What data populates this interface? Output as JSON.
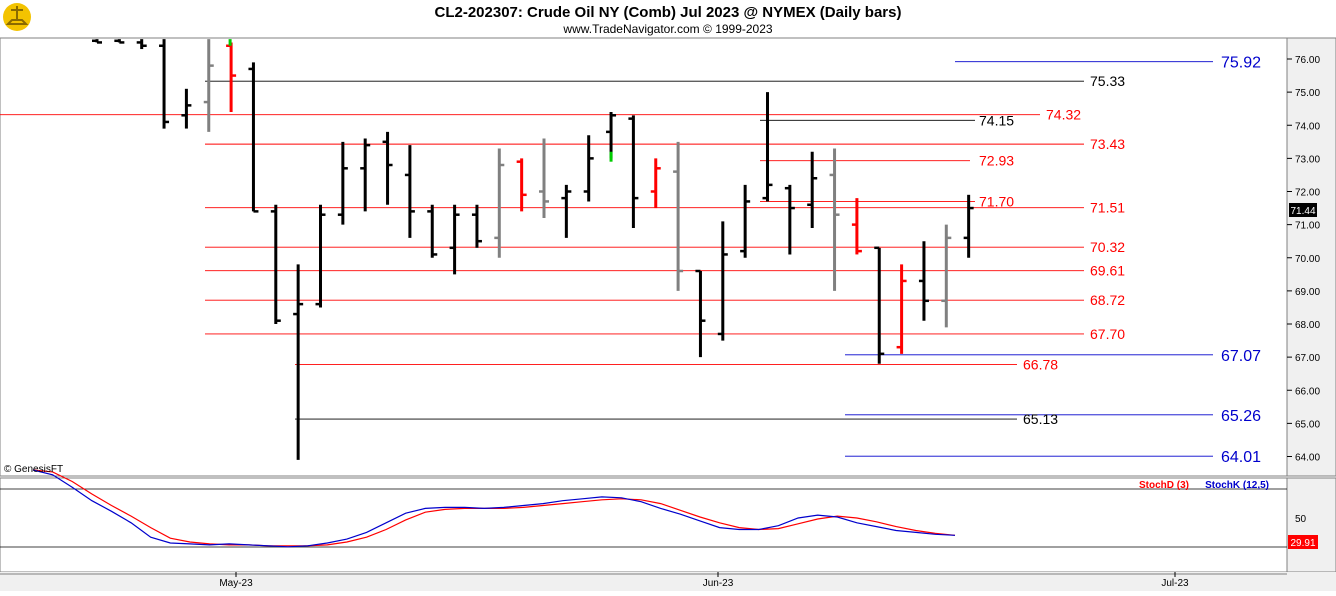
{
  "title": "CL2-202307:  Crude Oil NY (Comb) Jul 2023 @ NYMEX  (Daily bars)",
  "subtitle": "www.TradeNavigator.com © 1999-2023",
  "watermark": "© GenesisFT",
  "logo_icon": "scales-logo-icon",
  "colors": {
    "up": "#000000",
    "down": "#000000",
    "gray": "#808080",
    "red": "#ff0000",
    "green": "#00cc00",
    "blue": "#0000cc",
    "stochD": "#ff0000",
    "stochK": "#0000cc"
  },
  "chart_data": [
    {
      "type": "bar",
      "name": "price",
      "ylim": [
        63.6,
        76.6
      ],
      "yticks": [
        "76.00",
        "75.00",
        "74.00",
        "73.00",
        "72.00",
        "71.00",
        "70.00",
        "69.00",
        "68.00",
        "67.00",
        "66.00",
        "65.00",
        "64.00"
      ],
      "ytick_values": [
        76,
        75,
        74,
        73,
        72,
        71,
        70,
        69,
        68,
        67,
        66,
        65,
        64
      ],
      "last_price": "71.44",
      "xlabels": [
        "May-23",
        "Jun-23",
        "Jul-23"
      ],
      "bars": [
        {
          "h": 76.6,
          "l": 76.5,
          "o": 76.55,
          "c": 76.5,
          "color": "black"
        },
        {
          "h": 76.6,
          "l": 76.5,
          "o": 76.55,
          "c": 76.5,
          "color": "black"
        },
        {
          "h": 76.6,
          "l": 76.3,
          "o": 76.5,
          "c": 76.4,
          "color": "black"
        },
        {
          "h": 76.6,
          "l": 73.9,
          "o": 76.4,
          "c": 74.1,
          "color": "black"
        },
        {
          "h": 75.1,
          "l": 73.9,
          "o": 74.3,
          "c": 74.6,
          "color": "black"
        },
        {
          "h": 76.6,
          "l": 73.8,
          "o": 74.7,
          "c": 75.8,
          "color": "gray"
        },
        {
          "h": 76.5,
          "l": 74.4,
          "o": 76.4,
          "c": 75.5,
          "color": "red"
        },
        {
          "h": 75.9,
          "l": 71.4,
          "o": 75.7,
          "c": 71.4,
          "color": "black"
        },
        {
          "h": 71.6,
          "l": 68.0,
          "o": 71.4,
          "c": 68.1,
          "color": "black"
        },
        {
          "h": 69.8,
          "l": 63.9,
          "o": 68.3,
          "c": 68.6,
          "color": "black"
        },
        {
          "h": 71.6,
          "l": 68.5,
          "o": 68.6,
          "c": 71.3,
          "color": "black"
        },
        {
          "h": 73.5,
          "l": 71.0,
          "o": 71.3,
          "c": 72.7,
          "color": "black"
        },
        {
          "h": 73.6,
          "l": 71.4,
          "o": 72.7,
          "c": 73.4,
          "color": "black"
        },
        {
          "h": 73.8,
          "l": 71.6,
          "o": 73.5,
          "c": 72.8,
          "color": "black"
        },
        {
          "h": 73.4,
          "l": 70.6,
          "o": 72.5,
          "c": 71.4,
          "color": "black"
        },
        {
          "h": 71.6,
          "l": 70.0,
          "o": 71.4,
          "c": 70.1,
          "color": "black"
        },
        {
          "h": 71.6,
          "l": 69.5,
          "o": 70.3,
          "c": 71.3,
          "color": "black"
        },
        {
          "h": 71.6,
          "l": 70.3,
          "o": 71.3,
          "c": 70.5,
          "color": "black"
        },
        {
          "h": 73.3,
          "l": 70.0,
          "o": 70.6,
          "c": 72.8,
          "color": "gray"
        },
        {
          "h": 73.0,
          "l": 71.4,
          "o": 72.9,
          "c": 71.9,
          "color": "red"
        },
        {
          "h": 73.6,
          "l": 71.2,
          "o": 72.0,
          "c": 71.7,
          "color": "gray"
        },
        {
          "h": 72.2,
          "l": 70.6,
          "o": 71.8,
          "c": 72.0,
          "color": "black"
        },
        {
          "h": 73.7,
          "l": 71.7,
          "o": 72.0,
          "c": 73.0,
          "color": "black"
        },
        {
          "h": 74.4,
          "l": 73.0,
          "o": 73.8,
          "c": 74.3,
          "color": "black"
        },
        {
          "h": 74.3,
          "l": 70.9,
          "o": 74.2,
          "c": 71.8,
          "color": "black"
        },
        {
          "h": 73.0,
          "l": 71.5,
          "o": 72.0,
          "c": 72.7,
          "color": "red"
        },
        {
          "h": 73.5,
          "l": 69.0,
          "o": 72.6,
          "c": 69.6,
          "color": "gray"
        },
        {
          "h": 69.6,
          "l": 67.0,
          "o": 69.6,
          "c": 68.1,
          "color": "black"
        },
        {
          "h": 71.1,
          "l": 67.5,
          "o": 67.7,
          "c": 70.1,
          "color": "black"
        },
        {
          "h": 72.2,
          "l": 70.0,
          "o": 70.2,
          "c": 71.7,
          "color": "black"
        },
        {
          "h": 75.0,
          "l": 71.7,
          "o": 71.8,
          "c": 72.2,
          "color": "black"
        },
        {
          "h": 72.2,
          "l": 70.1,
          "o": 72.1,
          "c": 71.5,
          "color": "black"
        },
        {
          "h": 73.2,
          "l": 70.9,
          "o": 71.6,
          "c": 72.4,
          "color": "black"
        },
        {
          "h": 73.3,
          "l": 69.0,
          "o": 72.5,
          "c": 71.3,
          "color": "gray"
        },
        {
          "h": 71.8,
          "l": 70.1,
          "o": 71.0,
          "c": 70.2,
          "color": "red"
        },
        {
          "h": 70.3,
          "l": 66.8,
          "o": 70.3,
          "c": 67.1,
          "color": "black"
        },
        {
          "h": 69.8,
          "l": 67.1,
          "o": 67.3,
          "c": 69.3,
          "color": "red"
        },
        {
          "h": 70.5,
          "l": 68.1,
          "o": 69.3,
          "c": 68.7,
          "color": "black"
        },
        {
          "h": 71.0,
          "l": 67.9,
          "o": 68.7,
          "c": 70.6,
          "color": "gray"
        },
        {
          "h": 71.9,
          "l": 70.0,
          "o": 70.6,
          "c": 71.5,
          "color": "black"
        }
      ],
      "levels": [
        {
          "value": "75.92",
          "y": 75.92,
          "color": "blue",
          "big": true
        },
        {
          "value": "75.33",
          "y": 75.33,
          "color": "black"
        },
        {
          "value": "74.32",
          "y": 74.32,
          "color": "red"
        },
        {
          "value": "74.15",
          "y": 74.15,
          "color": "black"
        },
        {
          "value": "73.43",
          "y": 73.43,
          "color": "red"
        },
        {
          "value": "72.93",
          "y": 72.93,
          "color": "red"
        },
        {
          "value": "71.70",
          "y": 71.7,
          "color": "red"
        },
        {
          "value": "71.51",
          "y": 71.51,
          "color": "red"
        },
        {
          "value": "70.32",
          "y": 70.32,
          "color": "red"
        },
        {
          "value": "69.61",
          "y": 69.61,
          "color": "red"
        },
        {
          "value": "68.72",
          "y": 68.72,
          "color": "red"
        },
        {
          "value": "67.70",
          "y": 67.7,
          "color": "red"
        },
        {
          "value": "67.07",
          "y": 67.07,
          "color": "blue",
          "big": true
        },
        {
          "value": "66.78",
          "y": 66.78,
          "color": "red"
        },
        {
          "value": "65.26",
          "y": 65.26,
          "color": "blue",
          "big": true
        },
        {
          "value": "65.13",
          "y": 65.13,
          "color": "black"
        },
        {
          "value": "64.01",
          "y": 64.01,
          "color": "blue",
          "big": true
        }
      ]
    },
    {
      "type": "line",
      "name": "stochastic",
      "ylim": [
        0,
        100
      ],
      "ytick": "50",
      "last_value": "29.91",
      "legend": [
        {
          "label": "StochD (3)",
          "color": "red"
        },
        {
          "label": "StochK (12,5)",
          "color": "blue"
        }
      ],
      "series": [
        {
          "name": "StochK (12,5)",
          "values": [
            100,
            95,
            82,
            68,
            57,
            45,
            30,
            24,
            23,
            22,
            23,
            22,
            21,
            20,
            21,
            24,
            28,
            35,
            45,
            55,
            60,
            61,
            61,
            60,
            61,
            63,
            65,
            68,
            70,
            72,
            71,
            67,
            60,
            54,
            47,
            40,
            38,
            38,
            42,
            50,
            53,
            51,
            45,
            41,
            37,
            35,
            33,
            32
          ]
        },
        {
          "name": "StochD (3)",
          "values": [
            100,
            98,
            88,
            75,
            63,
            52,
            40,
            29,
            25,
            23,
            22,
            22,
            21,
            21,
            21,
            22,
            25,
            30,
            38,
            48,
            56,
            59,
            60,
            60,
            60,
            61,
            63,
            65,
            67,
            69,
            70,
            69,
            65,
            58,
            51,
            45,
            40,
            38,
            39,
            44,
            49,
            52,
            50,
            46,
            41,
            37,
            34,
            32
          ]
        }
      ]
    }
  ]
}
